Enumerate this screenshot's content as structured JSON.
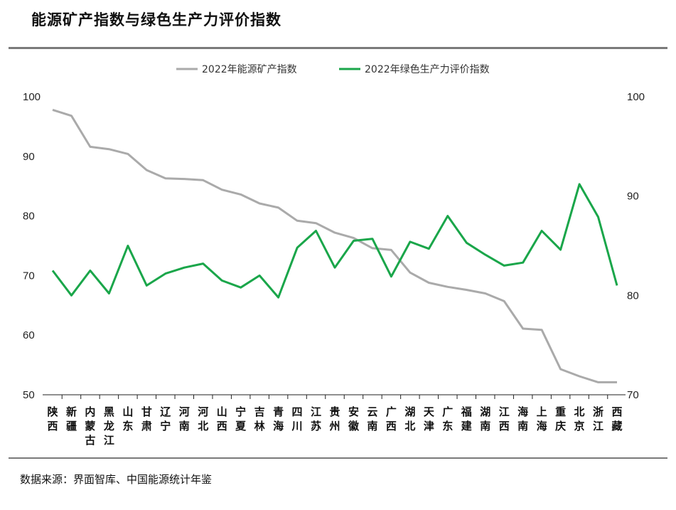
{
  "title": "能源矿产指数与绿色生产力评价指数",
  "source": "数据来源：界面智库、中国能源统计年鉴",
  "colors": {
    "series1": "#aaaaaa",
    "series2": "#1aa64a",
    "rule": "#7a7a7a"
  },
  "chart_data": {
    "type": "line",
    "categories": [
      "陕西",
      "新疆",
      "内蒙古",
      "黑龙江",
      "山东",
      "甘肃",
      "辽宁",
      "河南",
      "河北",
      "山西",
      "宁夏",
      "吉林",
      "青海",
      "四川",
      "江苏",
      "贵州",
      "安徽",
      "云南",
      "广西",
      "湖北",
      "天津",
      "广东",
      "福建",
      "湖南",
      "江西",
      "海南",
      "上海",
      "重庆",
      "北京",
      "浙江",
      "西藏"
    ],
    "series": [
      {
        "name": "2022年能源矿产指数",
        "axis": "left",
        "values": [
          97.8,
          96.8,
          91.6,
          91.2,
          90.4,
          87.7,
          86.3,
          86.2,
          86.0,
          84.4,
          83.6,
          82.1,
          81.4,
          79.2,
          78.8,
          77.2,
          76.3,
          74.6,
          74.3,
          70.5,
          68.8,
          68.1,
          67.6,
          67.0,
          65.7,
          61.1,
          60.9,
          54.3,
          53.1,
          52.1,
          52.1
        ]
      },
      {
        "name": "2022年绿色生产力评价指数",
        "axis": "right",
        "values": [
          82.5,
          80.0,
          82.5,
          80.2,
          85.0,
          81.0,
          82.2,
          82.8,
          83.2,
          81.5,
          80.8,
          82.0,
          79.8,
          84.8,
          86.5,
          82.8,
          85.5,
          85.7,
          81.9,
          85.4,
          84.7,
          88.0,
          85.3,
          84.1,
          83.0,
          83.3,
          86.5,
          84.6,
          91.2,
          87.9,
          81.0
        ]
      }
    ],
    "y_left": {
      "min": 50,
      "max": 100,
      "ticks": [
        50,
        60,
        70,
        80,
        90,
        100
      ]
    },
    "y_right": {
      "min": 70,
      "max": 100,
      "ticks": [
        70,
        80,
        90,
        100
      ]
    },
    "legend_position": "top-center",
    "grid": false
  }
}
